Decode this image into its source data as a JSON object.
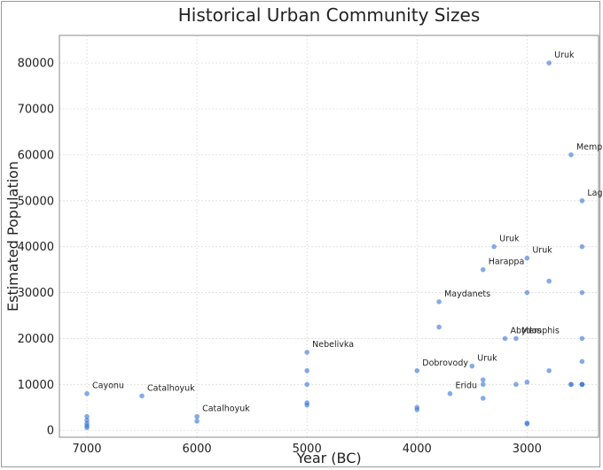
{
  "chart_data": {
    "type": "scatter",
    "title": "Historical Urban Community Sizes",
    "xlabel": "Year (BC)",
    "ylabel": "Estimated Population",
    "x_reversed": true,
    "xlim": [
      7250,
      2350
    ],
    "ylim": [
      -1500,
      86000
    ],
    "xticks": [
      7000,
      6000,
      5000,
      4000,
      3000
    ],
    "yticks": [
      0,
      10000,
      20000,
      30000,
      40000,
      50000,
      60000,
      70000,
      80000
    ],
    "grid": true,
    "legend": "none",
    "color": "#3a78d8",
    "points": [
      {
        "x": 7000,
        "y": 8000,
        "label": "Cayonu"
      },
      {
        "x": 7000,
        "y": 3000
      },
      {
        "x": 7000,
        "y": 2200
      },
      {
        "x": 7000,
        "y": 1500
      },
      {
        "x": 7000,
        "y": 1000
      },
      {
        "x": 7000,
        "y": 600
      },
      {
        "x": 6500,
        "y": 7500,
        "label": "Catalhoyuk"
      },
      {
        "x": 6000,
        "y": 3000,
        "label": "Catalhoyuk"
      },
      {
        "x": 6000,
        "y": 2000
      },
      {
        "x": 5000,
        "y": 17000,
        "label": "Nebelivka"
      },
      {
        "x": 5000,
        "y": 13000
      },
      {
        "x": 5000,
        "y": 10000
      },
      {
        "x": 5000,
        "y": 6000
      },
      {
        "x": 5000,
        "y": 5500
      },
      {
        "x": 4000,
        "y": 13000,
        "label": "Dobrovody"
      },
      {
        "x": 4000,
        "y": 5000
      },
      {
        "x": 4000,
        "y": 4500
      },
      {
        "x": 3800,
        "y": 28000,
        "label": "Maydanets"
      },
      {
        "x": 3800,
        "y": 22500
      },
      {
        "x": 3700,
        "y": 8000,
        "label": "Eridu"
      },
      {
        "x": 3500,
        "y": 14000,
        "label": "Uruk"
      },
      {
        "x": 3400,
        "y": 35000,
        "label": "Harappa"
      },
      {
        "x": 3400,
        "y": 11000
      },
      {
        "x": 3400,
        "y": 10000
      },
      {
        "x": 3400,
        "y": 7000
      },
      {
        "x": 3300,
        "y": 40000,
        "label": "Uruk"
      },
      {
        "x": 3200,
        "y": 20000,
        "label": "Abydos"
      },
      {
        "x": 3100,
        "y": 20000,
        "label": "Memphis"
      },
      {
        "x": 3100,
        "y": 10000
      },
      {
        "x": 3000,
        "y": 37500,
        "label": "Uruk"
      },
      {
        "x": 3000,
        "y": 30000
      },
      {
        "x": 3000,
        "y": 10500
      },
      {
        "x": 3000,
        "y": 1600
      },
      {
        "x": 3000,
        "y": 1400
      },
      {
        "x": 2800,
        "y": 80000,
        "label": "Uruk"
      },
      {
        "x": 2800,
        "y": 32500
      },
      {
        "x": 2800,
        "y": 13000
      },
      {
        "x": 2600,
        "y": 60000,
        "label": "Memphis"
      },
      {
        "x": 2600,
        "y": 10000
      },
      {
        "x": 2600,
        "y": 10000
      },
      {
        "x": 2500,
        "y": 50000,
        "label": "Lagash"
      },
      {
        "x": 2500,
        "y": 40000
      },
      {
        "x": 2500,
        "y": 30000
      },
      {
        "x": 2500,
        "y": 20000
      },
      {
        "x": 2500,
        "y": 15000
      },
      {
        "x": 2500,
        "y": 10000
      },
      {
        "x": 2500,
        "y": 10000
      },
      {
        "x": 2500,
        "y": 10000
      }
    ]
  }
}
